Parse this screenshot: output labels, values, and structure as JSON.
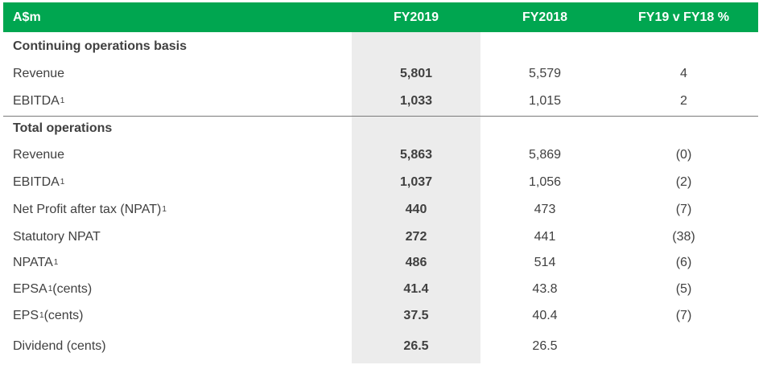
{
  "table": {
    "header": {
      "label": "A$m",
      "col1": "FY2019",
      "col2": "FY2018",
      "col3": "FY19 v FY18 %"
    },
    "rows": [
      {
        "label": "Continuing operations basis",
        "sup": "",
        "suffix": "",
        "v1": "",
        "v2": "",
        "v3": ""
      },
      {
        "label": "Revenue",
        "sup": "",
        "suffix": "",
        "v1": "5,801",
        "v2": "5,579",
        "v3": "4"
      },
      {
        "label": "EBITDA",
        "sup": "1",
        "suffix": "",
        "v1": "1,033",
        "v2": "1,015",
        "v3": "2"
      },
      {
        "label": "Total operations",
        "sup": "",
        "suffix": "",
        "v1": "",
        "v2": "",
        "v3": ""
      },
      {
        "label": "Revenue",
        "sup": "",
        "suffix": "",
        "v1": "5,863",
        "v2": "5,869",
        "v3": "(0)"
      },
      {
        "label": "EBITDA",
        "sup": "1",
        "suffix": "",
        "v1": "1,037",
        "v2": "1,056",
        "v3": "(2)"
      },
      {
        "label": "Net Profit after tax (NPAT)",
        "sup": "1",
        "suffix": "",
        "v1": "440",
        "v2": "473",
        "v3": "(7)"
      },
      {
        "label": "Statutory NPAT",
        "sup": "",
        "suffix": "",
        "v1": "272",
        "v2": "441",
        "v3": "(38)"
      },
      {
        "label": "NPATA",
        "sup": "1",
        "suffix": "",
        "v1": "486",
        "v2": "514",
        "v3": "(6)"
      },
      {
        "label": "EPSA",
        "sup": "1",
        "suffix": " (cents)",
        "v1": "41.4",
        "v2": "43.8",
        "v3": "(5)"
      },
      {
        "label": "EPS",
        "sup": "1",
        "suffix": " (cents)",
        "v1": "37.5",
        "v2": "40.4",
        "v3": "(7)"
      },
      {
        "label": "Dividend (cents)",
        "sup": "",
        "suffix": "",
        "v1": "26.5",
        "v2": "26.5",
        "v3": ""
      }
    ]
  }
}
